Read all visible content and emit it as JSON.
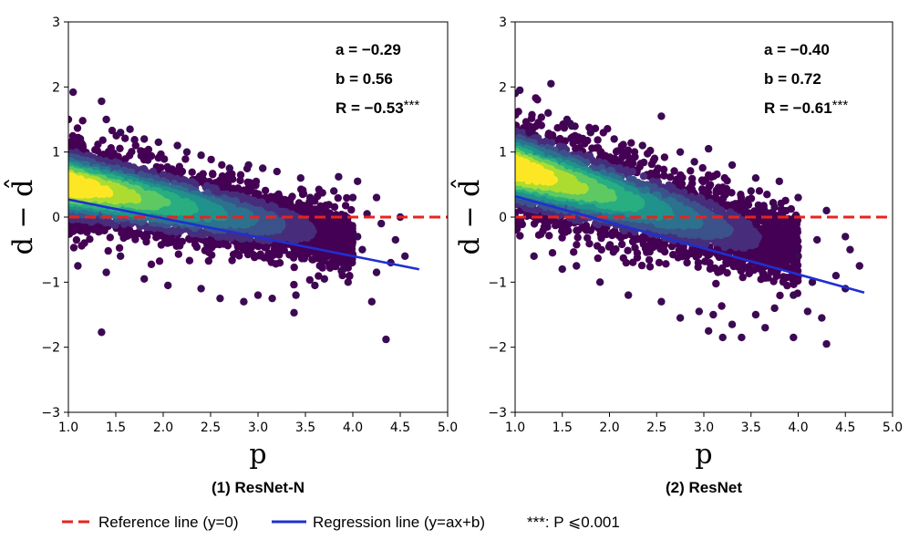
{
  "chart_data": [
    {
      "type": "scatter",
      "subtitle": "(1) ResNet-N",
      "xlabel": "p",
      "ylabel": "d − d̂",
      "xlim": [
        1.0,
        5.0
      ],
      "ylim": [
        -3,
        3
      ],
      "xticks": [
        "1.0",
        "1.5",
        "2.0",
        "2.5",
        "3.0",
        "3.5",
        "4.0",
        "4.5",
        "5.0"
      ],
      "yticks": [
        "3",
        "2",
        "1",
        "0",
        "−1",
        "−2",
        "−3"
      ],
      "stats": {
        "a_text": "a = −0.29",
        "b_text": "b = 0.56",
        "r_text": "R = −0.53",
        "r_sig": "***"
      },
      "regression": {
        "a": -0.29,
        "b": 0.56,
        "x_start": 1.0,
        "x_end": 4.7
      },
      "reference_y": 0,
      "density_core": {
        "x_range": [
          1.0,
          3.6
        ],
        "spread_start": 0.45,
        "spread_end": 0.35,
        "center_intercept": 0.5,
        "center_slope": -0.22
      },
      "outliers": [
        [
          1.05,
          1.92
        ],
        [
          1.0,
          1.5
        ],
        [
          1.35,
          1.78
        ],
        [
          1.4,
          1.5
        ],
        [
          1.55,
          1.3
        ],
        [
          1.8,
          1.2
        ],
        [
          2.15,
          1.1
        ],
        [
          2.4,
          0.95
        ],
        [
          2.7,
          0.75
        ],
        [
          3.05,
          0.75
        ],
        [
          3.2,
          0.7
        ],
        [
          3.45,
          0.6
        ],
        [
          3.85,
          0.62
        ],
        [
          4.05,
          0.55
        ],
        [
          4.25,
          0.3
        ],
        [
          4.5,
          0.0
        ],
        [
          4.3,
          -0.1
        ],
        [
          4.55,
          -0.6
        ],
        [
          4.4,
          -0.7
        ],
        [
          4.1,
          -0.5
        ],
        [
          3.9,
          -0.8
        ],
        [
          3.7,
          -0.95
        ],
        [
          3.95,
          -1.0
        ],
        [
          4.2,
          -1.3
        ],
        [
          4.35,
          -1.88
        ],
        [
          3.4,
          -1.2
        ],
        [
          3.0,
          -1.2
        ],
        [
          2.85,
          -1.3
        ],
        [
          3.15,
          -1.25
        ],
        [
          3.38,
          -1.47
        ],
        [
          2.4,
          -1.1
        ],
        [
          2.05,
          -1.05
        ],
        [
          1.8,
          -0.95
        ],
        [
          1.4,
          -0.85
        ],
        [
          1.35,
          -1.77
        ],
        [
          1.1,
          -0.75
        ],
        [
          1.55,
          -0.6
        ],
        [
          2.6,
          -1.25
        ],
        [
          3.6,
          -1.05
        ],
        [
          4.0,
          0.3
        ],
        [
          4.15,
          0.05
        ],
        [
          3.8,
          0.4
        ],
        [
          4.45,
          -0.35
        ],
        [
          3.55,
          0.3
        ],
        [
          2.25,
          1.0
        ],
        [
          1.95,
          1.15
        ],
        [
          1.65,
          1.35
        ],
        [
          2.9,
          0.8
        ],
        [
          4.05,
          -0.3
        ],
        [
          4.25,
          -0.85
        ]
      ]
    },
    {
      "type": "scatter",
      "subtitle": "(2) ResNet",
      "xlabel": "p",
      "ylabel": "d − d̂",
      "xlim": [
        1.0,
        5.0
      ],
      "ylim": [
        -3,
        3
      ],
      "xticks": [
        "1.0",
        "1.5",
        "2.0",
        "2.5",
        "3.0",
        "3.5",
        "4.0",
        "4.5",
        "5.0"
      ],
      "yticks": [
        "3",
        "2",
        "1",
        "0",
        "−1",
        "−2",
        "−3"
      ],
      "stats": {
        "a_text": "a = −0.40",
        "b_text": "b = 0.72",
        "r_text": "R = −0.61",
        "r_sig": "***"
      },
      "regression": {
        "a": -0.4,
        "b": 0.72,
        "x_start": 1.0,
        "x_end": 4.7
      },
      "reference_y": 0,
      "density_core": {
        "x_range": [
          1.0,
          3.6
        ],
        "spread_start": 0.5,
        "spread_end": 0.42,
        "center_intercept": 0.75,
        "center_slope": -0.36
      },
      "outliers": [
        [
          1.0,
          1.9
        ],
        [
          1.05,
          1.95
        ],
        [
          1.38,
          2.05
        ],
        [
          1.35,
          1.6
        ],
        [
          1.55,
          1.5
        ],
        [
          1.8,
          1.3
        ],
        [
          2.55,
          1.55
        ],
        [
          2.35,
          1.1
        ],
        [
          2.75,
          1.0
        ],
        [
          3.05,
          1.05
        ],
        [
          3.3,
          0.8
        ],
        [
          3.55,
          0.6
        ],
        [
          3.8,
          0.55
        ],
        [
          4.0,
          0.3
        ],
        [
          4.3,
          0.1
        ],
        [
          4.5,
          -0.3
        ],
        [
          4.65,
          -0.75
        ],
        [
          4.4,
          -0.9
        ],
        [
          4.15,
          -1.0
        ],
        [
          3.95,
          -1.2
        ],
        [
          3.75,
          -1.4
        ],
        [
          3.55,
          -1.5
        ],
        [
          3.3,
          -1.65
        ],
        [
          3.2,
          -1.85
        ],
        [
          3.05,
          -1.75
        ],
        [
          3.4,
          -1.85
        ],
        [
          4.3,
          -1.95
        ],
        [
          3.95,
          -1.85
        ],
        [
          4.25,
          -1.55
        ],
        [
          2.75,
          -1.55
        ],
        [
          2.55,
          -1.3
        ],
        [
          2.2,
          -1.2
        ],
        [
          1.9,
          -1.0
        ],
        [
          1.5,
          -0.8
        ],
        [
          1.2,
          -0.6
        ],
        [
          1.65,
          -0.75
        ],
        [
          3.65,
          -1.7
        ],
        [
          4.5,
          -1.1
        ],
        [
          4.0,
          -0.6
        ],
        [
          3.75,
          0.15
        ],
        [
          4.2,
          -0.35
        ],
        [
          3.5,
          0.4
        ],
        [
          2.05,
          1.2
        ],
        [
          1.6,
          1.4
        ],
        [
          2.9,
          0.85
        ],
        [
          4.55,
          -0.5
        ],
        [
          3.1,
          -1.5
        ],
        [
          4.1,
          -1.45
        ],
        [
          2.95,
          -1.45
        ],
        [
          1.15,
          1.3
        ]
      ]
    }
  ],
  "legend": {
    "reference_label": "Reference line (y=0)",
    "regression_label": "Regression line (y=ax+b)",
    "significance_label": "***: P ⩽0.001"
  },
  "colors": {
    "reference": "#e8231d",
    "regression": "#1f2fd1",
    "outlier": "#3a0a52",
    "density": [
      "#440154",
      "#472d7b",
      "#3b528b",
      "#2c728e",
      "#21918c",
      "#28ae80",
      "#5ec962",
      "#addc30",
      "#fde725"
    ]
  }
}
